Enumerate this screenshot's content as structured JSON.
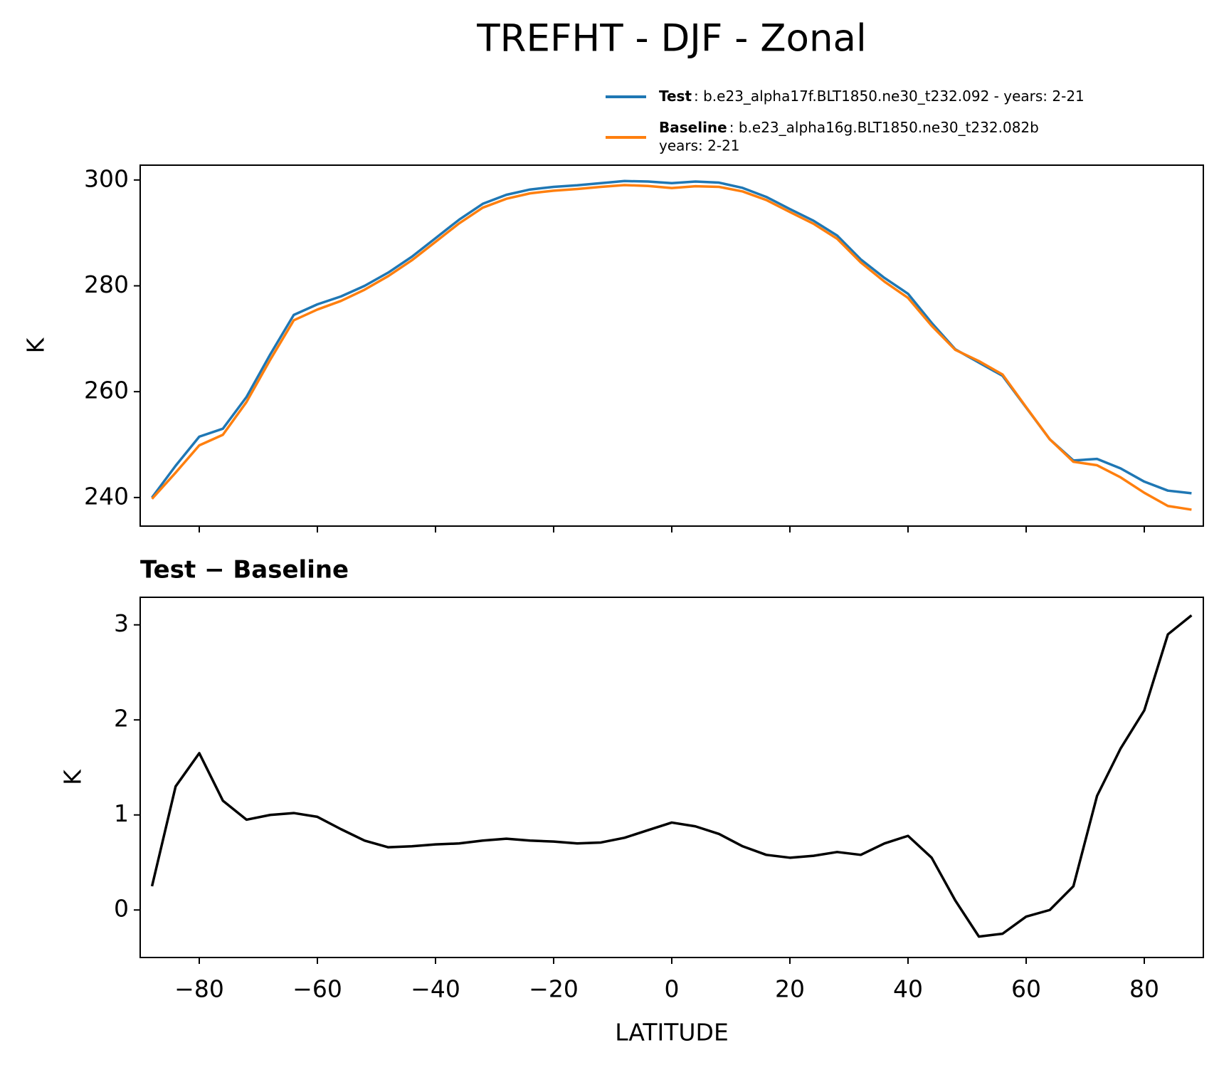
{
  "title": "TREFHT - DJF - Zonal",
  "chart_data": [
    {
      "type": "line",
      "ylabel": "K",
      "x": [
        -88,
        -84,
        -80,
        -76,
        -72,
        -68,
        -64,
        -60,
        -56,
        -52,
        -48,
        -44,
        -40,
        -36,
        -32,
        -28,
        -24,
        -20,
        -16,
        -12,
        -8,
        -4,
        0,
        4,
        8,
        12,
        16,
        20,
        24,
        28,
        32,
        36,
        40,
        44,
        48,
        52,
        56,
        60,
        64,
        68,
        72,
        76,
        80,
        84,
        88
      ],
      "series": [
        {
          "name": "Test",
          "label_lines": [
            ": b.e23_alpha17f.BLT1850.ne30_t232.092 - years: 2-21"
          ],
          "color": "#1f77b4",
          "values": [
            240,
            246,
            251.5,
            253,
            259,
            267,
            274.5,
            276.5,
            278,
            280,
            282.5,
            285.5,
            289,
            292.5,
            295.5,
            297.2,
            298.2,
            298.7,
            299,
            299.4,
            299.8,
            299.7,
            299.4,
            299.7,
            299.5,
            298.5,
            296.8,
            294.5,
            292.3,
            289.5,
            285,
            281.5,
            278.5,
            273,
            268,
            265.5,
            263,
            257,
            251,
            247,
            247.3,
            245.5,
            243,
            241.3,
            240.8
          ]
        },
        {
          "name": "Baseline",
          "label_lines": [
            ": b.e23_alpha16g.BLT1850.ne30_t232.082b",
            "years: 2-21"
          ],
          "color": "#ff7f0e",
          "values": [
            239.75,
            244.7,
            249.85,
            251.85,
            258.05,
            266,
            273.48,
            275.52,
            277.15,
            279.27,
            281.84,
            284.83,
            288.31,
            291.8,
            294.77,
            296.45,
            297.47,
            297.98,
            298.3,
            298.69,
            299.04,
            298.86,
            298.48,
            298.82,
            298.7,
            297.83,
            296.22,
            293.95,
            291.73,
            288.89,
            284.42,
            280.8,
            277.72,
            272.45,
            267.9,
            265.78,
            263.25,
            257.07,
            251,
            246.75,
            246.1,
            243.8,
            240.9,
            238.4,
            237.7
          ]
        }
      ],
      "xlim": [
        -90,
        90
      ],
      "xticks": [
        {
          "value": -80,
          "label": "−80"
        },
        {
          "value": -60,
          "label": "−60"
        },
        {
          "value": -40,
          "label": "−40"
        },
        {
          "value": -20,
          "label": "−20"
        },
        0,
        20,
        40,
        60,
        80
      ],
      "show_xtick_labels": false,
      "ylim": [
        234.6,
        302.8
      ],
      "yticks": [
        240,
        260,
        280,
        300
      ],
      "legend": "upper right"
    },
    {
      "type": "line",
      "title": "Test − Baseline",
      "xlabel": "LATITUDE",
      "ylabel": "K",
      "x": [
        -88,
        -84,
        -80,
        -76,
        -72,
        -68,
        -64,
        -60,
        -56,
        -52,
        -48,
        -44,
        -40,
        -36,
        -32,
        -28,
        -24,
        -20,
        -16,
        -12,
        -8,
        -4,
        0,
        4,
        8,
        12,
        16,
        20,
        24,
        28,
        32,
        36,
        40,
        44,
        48,
        52,
        56,
        60,
        64,
        68,
        72,
        76,
        80,
        84,
        88
      ],
      "color": "#000000",
      "values": [
        0.25,
        1.3,
        1.65,
        1.15,
        0.95,
        1.0,
        1.02,
        0.98,
        0.85,
        0.73,
        0.66,
        0.67,
        0.69,
        0.7,
        0.73,
        0.75,
        0.73,
        0.72,
        0.7,
        0.71,
        0.76,
        0.84,
        0.92,
        0.88,
        0.8,
        0.67,
        0.58,
        0.55,
        0.57,
        0.61,
        0.58,
        0.7,
        0.78,
        0.55,
        0.1,
        -0.28,
        -0.25,
        -0.07,
        0.0,
        0.25,
        1.2,
        1.7,
        2.1,
        2.9,
        3.1
      ],
      "xlim": [
        -90,
        90
      ],
      "xticks": [
        {
          "value": -80,
          "label": "−80"
        },
        {
          "value": -60,
          "label": "−60"
        },
        {
          "value": -40,
          "label": "−40"
        },
        {
          "value": -20,
          "label": "−20"
        },
        0,
        20,
        40,
        60,
        80
      ],
      "show_xtick_labels": true,
      "ylim": [
        -0.5,
        3.29
      ],
      "yticks": [
        0,
        1,
        2,
        3
      ]
    }
  ]
}
